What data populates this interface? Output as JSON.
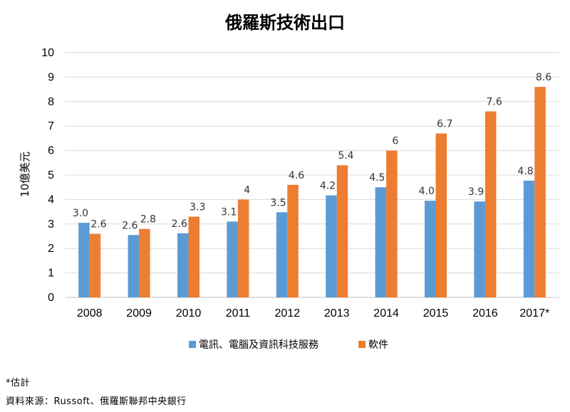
{
  "chart_data": {
    "type": "bar",
    "title": "俄羅斯技術出口",
    "ylabel": "10億美元",
    "xlabel": "",
    "ylim": [
      0,
      10
    ],
    "yticks": [
      0,
      1,
      2,
      3,
      4,
      5,
      6,
      7,
      8,
      9,
      10
    ],
    "grid": true,
    "legend_position": "bottom",
    "categories": [
      "2008",
      "2009",
      "2010",
      "2011",
      "2012",
      "2013",
      "2014",
      "2015",
      "2016",
      "2017*"
    ],
    "series": [
      {
        "name": "電訊、電腦及資訊科技服務",
        "color": "#5b9bd5",
        "values": [
          3.05,
          2.55,
          2.62,
          3.1,
          3.48,
          4.17,
          4.5,
          3.95,
          3.92,
          4.77
        ],
        "labels": [
          "3.0",
          "2.6",
          "2.6",
          "3.1",
          "3.5",
          "4.2",
          "4.5",
          "4.0",
          "3.9",
          "4.8"
        ]
      },
      {
        "name": "軟件",
        "color": "#ed7d31",
        "values": [
          2.6,
          2.8,
          3.3,
          4.0,
          4.6,
          5.4,
          6.0,
          6.7,
          7.6,
          8.6
        ],
        "labels": [
          "2.6",
          "2.8",
          "3.3",
          "4",
          "4.6",
          "5.4",
          "6",
          "6.7",
          "7.6",
          "8.6"
        ]
      }
    ]
  },
  "notes": {
    "footnote": "*估計",
    "source": "資料來源：Russoft、俄羅斯聯邦中央銀行"
  }
}
